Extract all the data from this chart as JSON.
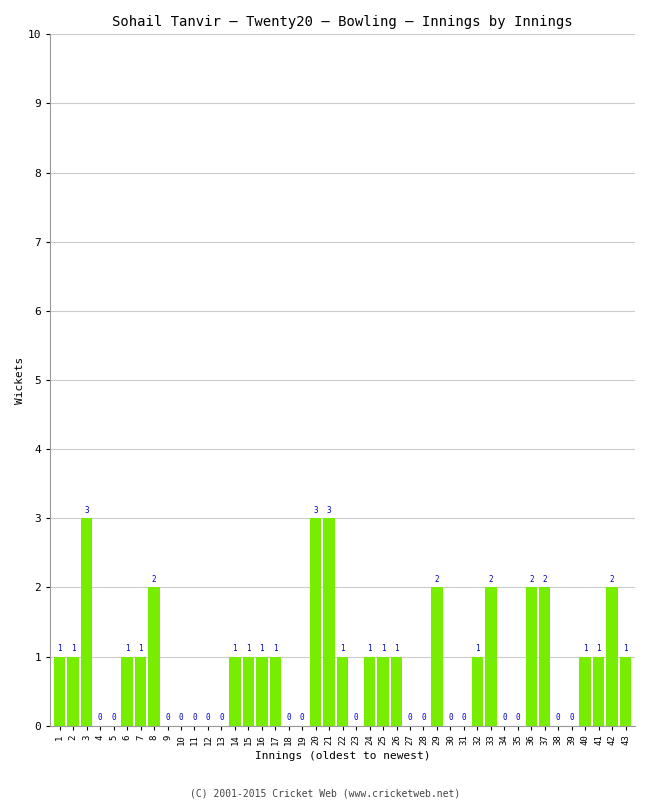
{
  "title": "Sohail Tanvir – Twenty20 – Bowling – Innings by Innings",
  "xlabel": "Innings (oldest to newest)",
  "ylabel": "Wickets",
  "ylim": [
    0,
    10
  ],
  "yticks": [
    0,
    1,
    2,
    3,
    4,
    5,
    6,
    7,
    8,
    9,
    10
  ],
  "bar_color": "#77ee00",
  "label_color": "#0000cc",
  "background_color": "#ffffff",
  "grid_color": "#cccccc",
  "footer": "(C) 2001-2015 Cricket Web (www.cricketweb.net)",
  "innings": [
    1,
    2,
    3,
    4,
    5,
    6,
    7,
    8,
    9,
    10,
    11,
    12,
    13,
    14,
    15,
    16,
    17,
    18,
    19,
    20,
    21,
    22,
    23,
    24,
    25,
    26,
    27,
    28,
    29,
    30,
    31,
    32,
    33,
    34,
    35,
    36,
    37,
    38,
    39,
    40,
    41,
    42,
    43
  ],
  "wickets": [
    1,
    1,
    3,
    0,
    0,
    1,
    1,
    2,
    0,
    0,
    0,
    0,
    0,
    1,
    1,
    1,
    1,
    0,
    0,
    3,
    3,
    1,
    0,
    1,
    1,
    1,
    0,
    0,
    2,
    0,
    0,
    1,
    2,
    0,
    0,
    2,
    2,
    0,
    0,
    1,
    1,
    2,
    1
  ]
}
